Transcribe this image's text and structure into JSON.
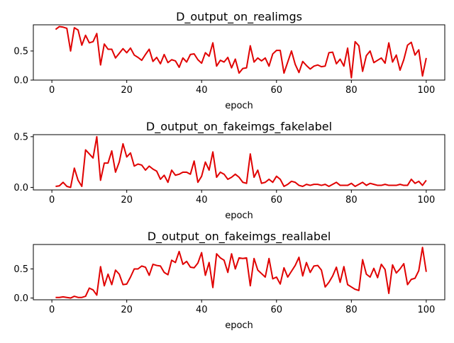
{
  "chart_data": [
    {
      "type": "line",
      "title": "D_output_on_realimgs",
      "xlabel": "epoch",
      "ylabel": "",
      "xlim": [
        -4.95,
        104.95
      ],
      "ylim": [
        0.0,
        0.95
      ],
      "xticks": [
        0,
        20,
        40,
        60,
        80,
        100
      ],
      "yticks": [
        0.0,
        0.5
      ],
      "ytick_labels": [
        "0.0",
        "0.5"
      ],
      "color": "#e00000",
      "series": [
        {
          "x": [
            1,
            2,
            3,
            4,
            5,
            6,
            7,
            8,
            9,
            10,
            11,
            12,
            13,
            14,
            15,
            16,
            17,
            18,
            19,
            20,
            21,
            22,
            23,
            24,
            25,
            26,
            27,
            28,
            29,
            30,
            31,
            32,
            33,
            34,
            35,
            36,
            37,
            38,
            39,
            40,
            41,
            42,
            43,
            44,
            45,
            46,
            47,
            48,
            49,
            50,
            51,
            52,
            53,
            54,
            55,
            56,
            57,
            58,
            59,
            60,
            61,
            62,
            63,
            64,
            65,
            66,
            67,
            68,
            69,
            70,
            71,
            72,
            73,
            74,
            75,
            76,
            77,
            78,
            79,
            80,
            81,
            82,
            83,
            84,
            85,
            86,
            87,
            88,
            89,
            90,
            91,
            92,
            93,
            94,
            95,
            96,
            97,
            98,
            99,
            100
          ],
          "values": [
            0.87,
            0.92,
            0.91,
            0.89,
            0.5,
            0.9,
            0.86,
            0.6,
            0.77,
            0.64,
            0.66,
            0.8,
            0.26,
            0.62,
            0.53,
            0.53,
            0.38,
            0.46,
            0.54,
            0.47,
            0.55,
            0.43,
            0.39,
            0.34,
            0.44,
            0.53,
            0.32,
            0.39,
            0.28,
            0.44,
            0.3,
            0.35,
            0.33,
            0.22,
            0.38,
            0.31,
            0.44,
            0.45,
            0.35,
            0.29,
            0.47,
            0.41,
            0.64,
            0.24,
            0.34,
            0.31,
            0.39,
            0.21,
            0.36,
            0.12,
            0.2,
            0.21,
            0.59,
            0.31,
            0.38,
            0.33,
            0.38,
            0.24,
            0.45,
            0.51,
            0.51,
            0.12,
            0.31,
            0.5,
            0.27,
            0.13,
            0.32,
            0.25,
            0.19,
            0.24,
            0.26,
            0.23,
            0.24,
            0.47,
            0.48,
            0.28,
            0.36,
            0.24,
            0.55,
            0.04,
            0.66,
            0.59,
            0.15,
            0.42,
            0.5,
            0.3,
            0.34,
            0.38,
            0.29,
            0.64,
            0.31,
            0.43,
            0.17,
            0.35,
            0.6,
            0.65,
            0.43,
            0.52,
            0.07,
            0.38
          ]
        }
      ]
    },
    {
      "type": "line",
      "title": "D_output_on_fakeimgs_fakelabel",
      "xlabel": "epoch",
      "ylabel": "",
      "xlim": [
        -4.95,
        104.95
      ],
      "ylim": [
        -0.025,
        0.52
      ],
      "xticks": [
        0,
        20,
        40,
        60,
        80,
        100
      ],
      "yticks": [
        0.0,
        0.5
      ],
      "ytick_labels": [
        "0.0",
        "0.5"
      ],
      "color": "#e00000",
      "series": [
        {
          "x": [
            1,
            2,
            3,
            4,
            5,
            6,
            7,
            8,
            9,
            10,
            11,
            12,
            13,
            14,
            15,
            16,
            17,
            18,
            19,
            20,
            21,
            22,
            23,
            24,
            25,
            26,
            27,
            28,
            29,
            30,
            31,
            32,
            33,
            34,
            35,
            36,
            37,
            38,
            39,
            40,
            41,
            42,
            43,
            44,
            45,
            46,
            47,
            48,
            49,
            50,
            51,
            52,
            53,
            54,
            55,
            56,
            57,
            58,
            59,
            60,
            61,
            62,
            63,
            64,
            65,
            66,
            67,
            68,
            69,
            70,
            71,
            72,
            73,
            74,
            75,
            76,
            77,
            78,
            79,
            80,
            81,
            82,
            83,
            84,
            85,
            86,
            87,
            88,
            89,
            90,
            91,
            92,
            93,
            94,
            95,
            96,
            97,
            98,
            99,
            100
          ],
          "values": [
            0.01,
            0.015,
            0.05,
            0.01,
            0.0,
            0.19,
            0.07,
            0.01,
            0.37,
            0.33,
            0.29,
            0.5,
            0.07,
            0.24,
            0.24,
            0.36,
            0.15,
            0.25,
            0.43,
            0.3,
            0.34,
            0.21,
            0.23,
            0.22,
            0.17,
            0.21,
            0.18,
            0.16,
            0.08,
            0.12,
            0.05,
            0.17,
            0.12,
            0.13,
            0.15,
            0.15,
            0.13,
            0.26,
            0.05,
            0.11,
            0.25,
            0.17,
            0.35,
            0.1,
            0.15,
            0.13,
            0.08,
            0.1,
            0.13,
            0.1,
            0.05,
            0.04,
            0.33,
            0.1,
            0.17,
            0.04,
            0.05,
            0.08,
            0.05,
            0.11,
            0.08,
            0.01,
            0.03,
            0.06,
            0.05,
            0.02,
            0.01,
            0.03,
            0.02,
            0.03,
            0.03,
            0.02,
            0.03,
            0.01,
            0.03,
            0.05,
            0.02,
            0.02,
            0.02,
            0.04,
            0.01,
            0.03,
            0.05,
            0.02,
            0.04,
            0.03,
            0.02,
            0.02,
            0.03,
            0.02,
            0.02,
            0.02,
            0.03,
            0.02,
            0.02,
            0.08,
            0.04,
            0.06,
            0.02,
            0.07
          ]
        }
      ]
    },
    {
      "type": "line",
      "title": "D_output_on_fakeimgs_reallabel",
      "xlabel": "epoch",
      "ylabel": "",
      "xlim": [
        -4.95,
        104.95
      ],
      "ylim": [
        -0.03,
        0.92
      ],
      "xticks": [
        0,
        20,
        40,
        60,
        80,
        100
      ],
      "yticks": [
        0.0,
        0.5
      ],
      "ytick_labels": [
        "0.0",
        "0.5"
      ],
      "color": "#e00000",
      "series": [
        {
          "x": [
            1,
            2,
            3,
            4,
            5,
            6,
            7,
            8,
            9,
            10,
            11,
            12,
            13,
            14,
            15,
            16,
            17,
            18,
            19,
            20,
            21,
            22,
            23,
            24,
            25,
            26,
            27,
            28,
            29,
            30,
            31,
            32,
            33,
            34,
            35,
            36,
            37,
            38,
            39,
            40,
            41,
            42,
            43,
            44,
            45,
            46,
            47,
            48,
            49,
            50,
            51,
            52,
            53,
            54,
            55,
            56,
            57,
            58,
            59,
            60,
            61,
            62,
            63,
            64,
            65,
            66,
            67,
            68,
            69,
            70,
            71,
            72,
            73,
            74,
            75,
            76,
            77,
            78,
            79,
            80,
            81,
            82,
            83,
            84,
            85,
            86,
            87,
            88,
            89,
            90,
            91,
            92,
            93,
            94,
            95,
            96,
            97,
            98,
            99,
            100
          ],
          "values": [
            0.01,
            0.01,
            0.02,
            0.01,
            0.0,
            0.03,
            0.01,
            0.01,
            0.03,
            0.17,
            0.14,
            0.05,
            0.54,
            0.21,
            0.41,
            0.23,
            0.48,
            0.41,
            0.23,
            0.24,
            0.36,
            0.5,
            0.5,
            0.55,
            0.53,
            0.39,
            0.58,
            0.56,
            0.55,
            0.44,
            0.4,
            0.65,
            0.61,
            0.8,
            0.58,
            0.63,
            0.53,
            0.52,
            0.6,
            0.78,
            0.39,
            0.61,
            0.18,
            0.76,
            0.69,
            0.65,
            0.44,
            0.76,
            0.5,
            0.69,
            0.68,
            0.69,
            0.21,
            0.68,
            0.48,
            0.42,
            0.36,
            0.68,
            0.33,
            0.36,
            0.24,
            0.52,
            0.36,
            0.46,
            0.56,
            0.7,
            0.38,
            0.61,
            0.44,
            0.55,
            0.56,
            0.48,
            0.19,
            0.27,
            0.38,
            0.53,
            0.27,
            0.54,
            0.23,
            0.19,
            0.15,
            0.13,
            0.66,
            0.41,
            0.36,
            0.51,
            0.35,
            0.58,
            0.49,
            0.08,
            0.57,
            0.43,
            0.5,
            0.59,
            0.23,
            0.32,
            0.34,
            0.47,
            0.87,
            0.45
          ]
        }
      ]
    }
  ]
}
